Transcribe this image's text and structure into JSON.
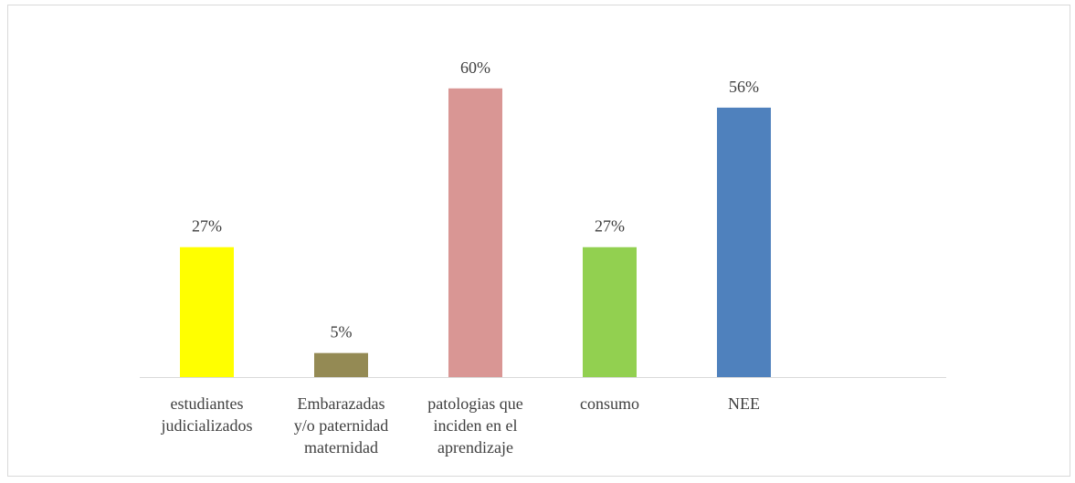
{
  "chart_data": {
    "type": "bar",
    "categories": [
      [
        "estudiantes",
        "judicializados"
      ],
      [
        "Embarazadas",
        "y/o paternidad",
        "maternidad"
      ],
      [
        "patologias que",
        "inciden en el",
        "aprendizaje"
      ],
      [
        "consumo"
      ],
      [
        "NEE"
      ]
    ],
    "values": [
      27,
      5,
      60,
      27,
      56
    ],
    "value_labels": [
      "27%",
      "5%",
      "60%",
      "27%",
      "56%"
    ],
    "colors": [
      "#ffff00",
      "#948a54",
      "#d99694",
      "#92d050",
      "#4f81bd"
    ]
  }
}
